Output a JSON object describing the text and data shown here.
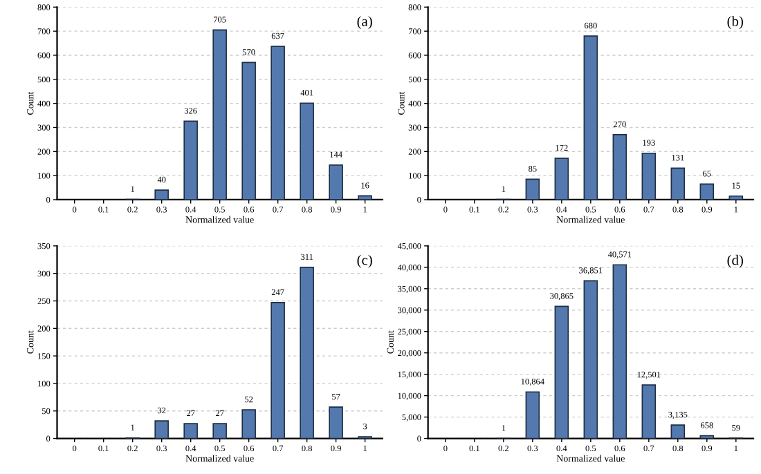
{
  "chart_data": [
    {
      "type": "bar",
      "xlabel": "Normalized value",
      "ylabel": "Count",
      "annotations": [
        "(a)"
      ],
      "categories": [
        "0",
        "0.1",
        "0.2",
        "0.3",
        "0.4",
        "0.5",
        "0.6",
        "0.7",
        "0.8",
        "0.9",
        "1"
      ],
      "values": [
        null,
        null,
        1,
        40,
        326,
        705,
        570,
        637,
        401,
        144,
        16
      ],
      "value_labels": [
        null,
        null,
        "1",
        "40",
        "326",
        "705",
        "570",
        "637",
        "401",
        "144",
        "16"
      ],
      "color": "#5479ae",
      "ylim": [
        0,
        800
      ],
      "yticks": [
        0,
        100,
        200,
        300,
        400,
        500,
        600,
        700,
        800
      ],
      "grid": "y"
    },
    {
      "type": "bar",
      "xlabel": "Normalized value",
      "ylabel": "Count",
      "annotations": [
        "(b)"
      ],
      "categories": [
        "0",
        "0.1",
        "0.2",
        "0.3",
        "0.4",
        "0.5",
        "0.6",
        "0.7",
        "0.8",
        "0.9",
        "1"
      ],
      "values": [
        null,
        null,
        1,
        85,
        172,
        680,
        270,
        193,
        131,
        65,
        15
      ],
      "value_labels": [
        null,
        null,
        "1",
        "85",
        "172",
        "680",
        "270",
        "193",
        "131",
        "65",
        "15"
      ],
      "color": "#5479ae",
      "ylim": [
        0,
        800
      ],
      "yticks": [
        0,
        100,
        200,
        300,
        400,
        500,
        600,
        700,
        800
      ],
      "grid": "y"
    },
    {
      "type": "bar",
      "xlabel": "Normalized value",
      "ylabel": "Count",
      "annotations": [
        "(c)"
      ],
      "categories": [
        "0",
        "0.1",
        "0.2",
        "0.3",
        "0.4",
        "0.5",
        "0.6",
        "0.7",
        "0.8",
        "0.9",
        "1"
      ],
      "values": [
        null,
        null,
        1,
        32,
        27,
        27,
        52,
        247,
        311,
        57,
        3
      ],
      "value_labels": [
        null,
        null,
        "1",
        "32",
        "27",
        "27",
        "52",
        "247",
        "311",
        "57",
        "3"
      ],
      "color": "#5479ae",
      "ylim": [
        0,
        350
      ],
      "yticks": [
        0,
        50,
        100,
        150,
        200,
        250,
        300,
        350
      ],
      "grid": "y"
    },
    {
      "type": "bar",
      "xlabel": "Normalized value",
      "ylabel": "Count",
      "annotations": [
        "(d)"
      ],
      "categories": [
        "0",
        "0.1",
        "0.2",
        "0.3",
        "0.4",
        "0.5",
        "0.6",
        "0.7",
        "0.8",
        "0.9",
        "1"
      ],
      "values": [
        null,
        null,
        1,
        10864,
        30865,
        36851,
        40571,
        12501,
        3135,
        658,
        59
      ],
      "value_labels": [
        null,
        null,
        "1",
        "10,864",
        "30,865",
        "36,851",
        "40,571",
        "12,501",
        "3,135",
        "658",
        "59"
      ],
      "color": "#5479ae",
      "ylim": [
        0,
        45000
      ],
      "yticks": [
        {
          "value": 0,
          "label": "0"
        },
        {
          "value": 5000,
          "label": "5,000"
        },
        {
          "value": 10000,
          "label": "10,000"
        },
        {
          "value": 15000,
          "label": "15,000"
        },
        {
          "value": 20000,
          "label": "20,000"
        },
        {
          "value": 25000,
          "label": "25,000"
        },
        {
          "value": 30000,
          "label": "30,000"
        },
        {
          "value": 35000,
          "label": "35,000"
        },
        {
          "value": 40000,
          "label": "40,000"
        },
        {
          "value": 45000,
          "label": "45,000"
        }
      ],
      "grid": "y"
    }
  ]
}
